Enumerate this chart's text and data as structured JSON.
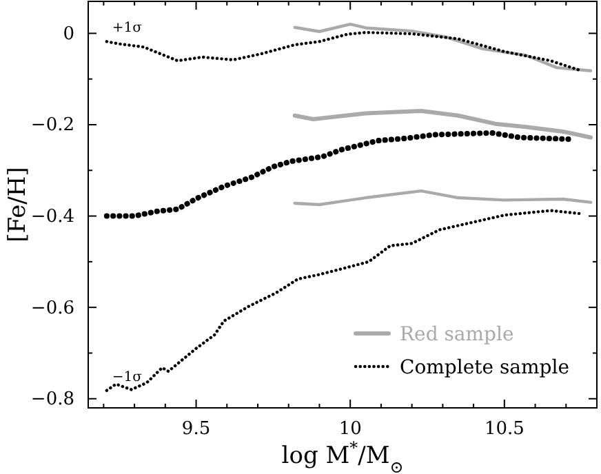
{
  "chart_data": {
    "type": "line",
    "xlabel": "log M$^{*}$/M$_{⊙}$",
    "ylabel": "[Fe/H]",
    "xlim": [
      9.15,
      10.8
    ],
    "ylim": [
      -0.82,
      0.07
    ],
    "xticks": [
      {
        "value": 9.2,
        "label": null
      },
      {
        "value": 9.3,
        "label": null
      },
      {
        "value": 9.4,
        "label": null
      },
      9.5,
      {
        "value": 9.6,
        "label": null
      },
      {
        "value": 9.7,
        "label": null
      },
      {
        "value": 9.8,
        "label": null
      },
      {
        "value": 9.9,
        "label": null
      },
      10,
      {
        "value": 10.1,
        "label": null
      },
      {
        "value": 10.2,
        "label": null
      },
      {
        "value": 10.3,
        "label": null
      },
      {
        "value": 10.4,
        "label": null
      },
      10.5,
      {
        "value": 10.6,
        "label": null
      },
      {
        "value": 10.7,
        "label": null
      }
    ],
    "yticks": [
      -0.8,
      {
        "value": -0.7,
        "label": null
      },
      -0.6,
      {
        "value": -0.5,
        "label": null
      },
      -0.4,
      {
        "value": -0.3,
        "label": null
      },
      -0.2,
      {
        "value": -0.1,
        "label": null
      },
      0
    ],
    "grid": false,
    "legend": "bottom right",
    "annotations": [
      "+1σ",
      "−1σ"
    ],
    "series": [
      {
        "name": "Red sample",
        "color": "#aaaaaa",
        "line_style": "solid",
        "x": [
          9.82,
          9.88,
          10.05,
          10.23,
          10.35,
          10.47,
          10.57,
          10.69,
          10.78
        ],
        "values": [
          -0.18,
          -0.188,
          -0.175,
          -0.17,
          -0.18,
          -0.198,
          -0.205,
          -0.215,
          -0.228
        ]
      },
      {
        "color": "#aaaaaa",
        "line_style": "solid",
        "x": [
          9.82,
          9.9,
          10.0,
          10.05,
          10.2,
          10.31,
          10.43,
          10.57,
          10.67,
          10.78
        ],
        "values": [
          0.013,
          0.004,
          0.02,
          0.012,
          0.005,
          -0.008,
          -0.034,
          -0.048,
          -0.075,
          -0.082
        ]
      },
      {
        "color": "#aaaaaa",
        "line_style": "solid",
        "x": [
          9.82,
          9.9,
          10.05,
          10.23,
          10.35,
          10.5,
          10.69,
          10.78
        ],
        "values": [
          -0.372,
          -0.375,
          -0.36,
          -0.345,
          -0.36,
          -0.365,
          -0.363,
          -0.37
        ]
      },
      {
        "name": "Complete sample",
        "color": "#000000",
        "line_style": "dotted",
        "x": [
          9.21,
          9.3,
          9.37,
          9.44,
          9.5,
          9.59,
          9.68,
          9.75,
          9.81,
          9.91,
          9.97,
          10.09,
          10.18,
          10.27,
          10.46,
          10.55,
          10.72
        ],
        "values": [
          -0.4,
          -0.4,
          -0.39,
          -0.385,
          -0.362,
          -0.335,
          -0.315,
          -0.292,
          -0.28,
          -0.27,
          -0.255,
          -0.235,
          -0.23,
          -0.222,
          -0.218,
          -0.228,
          -0.232
        ]
      },
      {
        "color": "#000000",
        "line_style": "dotted",
        "x": [
          9.21,
          9.25,
          9.33,
          9.44,
          9.52,
          9.62,
          9.71,
          9.82,
          9.9,
          9.99,
          10.05,
          10.2,
          10.35,
          10.5,
          10.65,
          10.75
        ],
        "values": [
          -0.018,
          -0.023,
          -0.03,
          -0.06,
          -0.052,
          -0.058,
          -0.045,
          -0.025,
          -0.018,
          -0.002,
          0.002,
          -0.001,
          -0.012,
          -0.04,
          -0.06,
          -0.082
        ]
      },
      {
        "color": "#000000",
        "line_style": "dotted",
        "x": [
          9.21,
          9.24,
          9.29,
          9.34,
          9.39,
          9.41,
          9.5,
          9.56,
          9.59,
          9.67,
          9.76,
          9.83,
          9.9,
          9.97,
          10.06,
          10.13,
          10.2,
          10.29,
          10.5,
          10.65,
          10.75
        ],
        "values": [
          -0.782,
          -0.768,
          -0.78,
          -0.765,
          -0.732,
          -0.74,
          -0.69,
          -0.66,
          -0.63,
          -0.598,
          -0.568,
          -0.538,
          -0.528,
          -0.516,
          -0.5,
          -0.465,
          -0.46,
          -0.43,
          -0.398,
          -0.388,
          -0.395
        ]
      }
    ]
  }
}
